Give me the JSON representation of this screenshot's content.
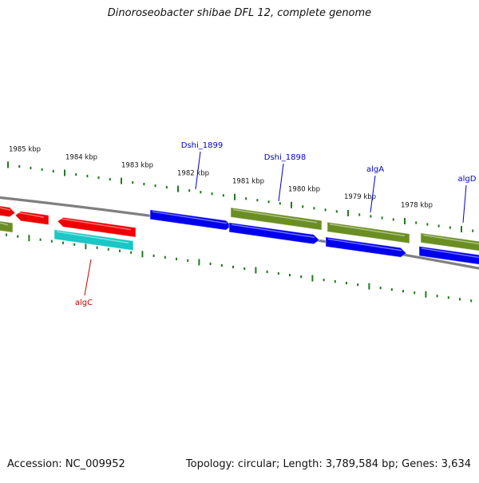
{
  "title": "Dinoroseobacter shibae DFL 12, complete genome",
  "footer": {
    "accession": "Accession: NC_009952",
    "stats": "Topology: circular; Length: 3,789,584 bp; Genes: 3,634"
  },
  "colors": {
    "tick": "#1f7a1f",
    "backbone": "#7f7f7f",
    "red": "#ee0000",
    "blue": "#0000ee",
    "olive": "#6b8e23",
    "cyan": "#1ac6c6",
    "label_blue": "#0000cc",
    "label_red": "#cc0000"
  },
  "kbp_labels": [
    "1985 kbp",
    "1984 kbp",
    "1983 kbp",
    "1982 kbp",
    "1981 kbp",
    "1980 kbp",
    "1979 kbp",
    "1978 kbp"
  ],
  "gene_labels": [
    {
      "text": "Dshi_1899",
      "color": "blue"
    },
    {
      "text": "Dshi_1898",
      "color": "blue"
    },
    {
      "text": "algA",
      "color": "blue"
    },
    {
      "text": "algD",
      "color": "blue"
    },
    {
      "text": "algC",
      "color": "red"
    }
  ]
}
